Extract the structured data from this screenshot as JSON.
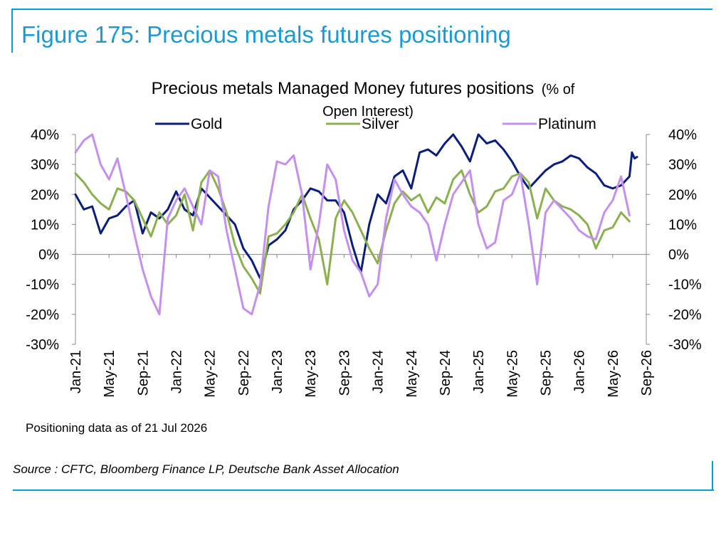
{
  "figure_title": "Figure 175: Precious metals futures positioning",
  "note": "Positioning data as of 21 Jul 2026",
  "source": "Source : CFTC, Bloomberg Finance LP, Deutsche Bank Asset Allocation",
  "colors": {
    "accent": "#1a9bd7",
    "gold": "#0a1f7d",
    "silver": "#8cb04e",
    "platinum": "#c48ff0",
    "axis": "#888888"
  },
  "chart_data": {
    "type": "line",
    "title": "Precious metals Managed Money futures positions",
    "title_suffix": "(% of",
    "title_line2": "Open Interest)",
    "legend_position": "top",
    "y_axis": {
      "min": -30,
      "max": 40,
      "step": 10,
      "tick_labels": [
        "40%",
        "30%",
        "20%",
        "10%",
        "0%",
        "-10%",
        "-20%",
        "-30%"
      ]
    },
    "y2_axis": {
      "min": -30,
      "max": 40,
      "tick_labels": [
        "40%",
        "30%",
        "20%",
        "10%",
        "0%",
        "-10%",
        "-20%",
        "-30%"
      ]
    },
    "x_axis": {
      "start": "2021-01",
      "end": "2026-09",
      "tick_labels": [
        "Jan-21",
        "May-21",
        "Sep-21",
        "Jan-22",
        "May-22",
        "Sep-22",
        "Jan-23",
        "May-23",
        "Sep-23",
        "Jan-24",
        "May-24",
        "Sep-24",
        "Jan-25",
        "May-25",
        "Sep-25",
        "Jan-26",
        "May-26",
        "Sep-26"
      ]
    },
    "x_dates": [
      "Jan-21",
      "Feb-21",
      "Mar-21",
      "Apr-21",
      "May-21",
      "Jun-21",
      "Jul-21",
      "Aug-21",
      "Sep-21",
      "Oct-21",
      "Nov-21",
      "Dec-21",
      "Jan-22",
      "Feb-22",
      "Mar-22",
      "Apr-22",
      "May-22",
      "Jun-22",
      "Jul-22",
      "Aug-22",
      "Sep-22",
      "Oct-22",
      "Nov-22",
      "Dec-22",
      "Jan-23",
      "Feb-23",
      "Mar-23",
      "Apr-23",
      "May-23",
      "Jun-23",
      "Jul-23",
      "Aug-23",
      "Sep-23",
      "Oct-23",
      "Nov-23",
      "Dec-23",
      "Jan-24",
      "Feb-24",
      "Mar-24",
      "Apr-24",
      "May-24",
      "Jun-24",
      "Jul-24",
      "Aug-24",
      "Sep-24",
      "Oct-24",
      "Nov-24",
      "Dec-24",
      "Jan-25",
      "Feb-25",
      "Mar-25",
      "Apr-25",
      "May-25",
      "Jun-25",
      "Jul-25",
      "Aug-25",
      "Sep-25",
      "Oct-25",
      "Nov-25",
      "Dec-25",
      "Jan-26",
      "Feb-26",
      "Mar-26",
      "Apr-26",
      "May-26",
      "Jun-26",
      "Jul-26"
    ],
    "series": [
      {
        "name": "Gold",
        "color": "#0a1f7d",
        "values": [
          20,
          15,
          16,
          7,
          12,
          13,
          16,
          18,
          7,
          14,
          12,
          15,
          21,
          15,
          13,
          22,
          19,
          16,
          13,
          10,
          2,
          -2,
          -8,
          3,
          5,
          8,
          15,
          18,
          22,
          21,
          18,
          18,
          14,
          3,
          -6,
          10,
          20,
          17,
          26,
          28,
          22,
          34,
          35,
          33,
          37,
          40,
          36,
          31,
          40,
          37,
          38,
          35,
          31,
          26,
          22,
          25,
          28,
          30,
          31,
          33,
          32,
          29,
          27,
          23,
          22,
          23,
          26
        ],
        "end_extra": [
          34,
          32,
          32.5
        ]
      },
      {
        "name": "Silver",
        "color": "#8cb04e",
        "values": [
          27,
          24,
          20,
          17,
          15,
          22,
          21,
          18,
          12,
          6,
          14,
          10,
          13,
          20,
          8,
          24,
          28,
          22,
          14,
          3,
          -4,
          -8,
          -13,
          6,
          7,
          10,
          14,
          20,
          12,
          5,
          -10,
          12,
          18,
          14,
          8,
          2,
          -3,
          8,
          17,
          21,
          18,
          20,
          14,
          19,
          17,
          25,
          28,
          20,
          14,
          16,
          21,
          22,
          26,
          27,
          24,
          12,
          22,
          18,
          16,
          15,
          13,
          10,
          2,
          8,
          9,
          14,
          11
        ]
      },
      {
        "name": "Platinum",
        "color": "#c48ff0",
        "values": [
          34,
          38,
          40,
          30,
          25,
          32,
          20,
          7,
          -5,
          -14,
          -20,
          12,
          18,
          22,
          16,
          10,
          28,
          26,
          8,
          -5,
          -18,
          -20,
          -10,
          16,
          31,
          30,
          33,
          20,
          -5,
          10,
          30,
          25,
          8,
          -2,
          -6,
          -14,
          -10,
          12,
          25,
          20,
          16,
          14,
          10,
          -2,
          10,
          20,
          24,
          28,
          10,
          2,
          4,
          18,
          20,
          27,
          10,
          -10,
          14,
          18,
          15,
          12,
          8,
          6,
          5,
          14,
          18,
          26,
          13
        ]
      }
    ]
  }
}
